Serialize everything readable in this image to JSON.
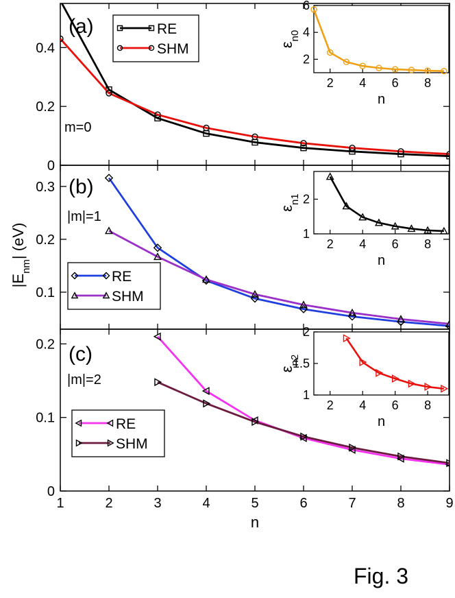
{
  "figure": {
    "caption": "Fig. 3",
    "shared_xlabel": "n",
    "shared_ylabel_main": "|E",
    "shared_ylabel_sub": "nm",
    "shared_ylabel_tail": "| (eV)",
    "x_ticks": [
      "1",
      "2",
      "3",
      "4",
      "5",
      "6",
      "7",
      "8",
      "9"
    ]
  },
  "chart_data": [
    {
      "type": "line",
      "id": "a",
      "panel_label": "(a)",
      "annotation": "m=0",
      "xlim": [
        1,
        9
      ],
      "ylim": [
        0,
        0.55
      ],
      "yticks": [
        0,
        0.2,
        0.4
      ],
      "ytick_labels": [
        "0",
        "0.2",
        "0.4"
      ],
      "legend_position": "top-left",
      "series": [
        {
          "name": "RE",
          "color": "#000000",
          "marker": "square",
          "x": [
            1,
            2,
            3,
            4,
            5,
            6,
            7,
            8,
            9
          ],
          "y": [
            0.56,
            0.257,
            0.16,
            0.108,
            0.078,
            0.059,
            0.047,
            0.038,
            0.031
          ]
        },
        {
          "name": "SHM",
          "color": "#e8120c",
          "marker": "circle",
          "x": [
            1,
            2,
            3,
            4,
            5,
            6,
            7,
            8,
            9
          ],
          "y": [
            0.43,
            0.245,
            0.172,
            0.127,
            0.097,
            0.075,
            0.059,
            0.047,
            0.038
          ]
        }
      ],
      "inset": {
        "ylabel_main": "ε",
        "ylabel_sub": "n0",
        "xlabel": "n",
        "xlim": [
          1,
          9.3
        ],
        "ylim": [
          1,
          6
        ],
        "xticks": [
          2,
          4,
          6,
          8
        ],
        "xtick_labels": [
          "2",
          "4",
          "6",
          "8"
        ],
        "yticks": [
          2,
          4,
          6
        ],
        "ytick_labels": [
          "2",
          "4",
          "6"
        ],
        "color": "#f0a014",
        "marker": "circle",
        "x": [
          1,
          2,
          3,
          4,
          5,
          6,
          7,
          8,
          9
        ],
        "y": [
          5.7,
          2.5,
          1.8,
          1.5,
          1.35,
          1.25,
          1.2,
          1.15,
          1.12
        ]
      }
    },
    {
      "type": "line",
      "id": "b",
      "panel_label": "(b)",
      "annotation": "|m|=1",
      "xlim": [
        1,
        9
      ],
      "ylim": [
        0.03,
        0.34
      ],
      "yticks": [
        0.1,
        0.2,
        0.3
      ],
      "ytick_labels": [
        "0.1",
        "0.2",
        "0.3"
      ],
      "legend_position": "bottom-left",
      "series": [
        {
          "name": "RE",
          "color": "#1f3fe0",
          "marker": "diamond",
          "x": [
            2,
            3,
            4,
            5,
            6,
            7,
            8,
            9
          ],
          "y": [
            0.316,
            0.184,
            0.122,
            0.088,
            0.068,
            0.054,
            0.044,
            0.036
          ]
        },
        {
          "name": "SHM",
          "color": "#9b2fc9",
          "marker": "triangle-up",
          "x": [
            2,
            3,
            4,
            5,
            6,
            7,
            8,
            9
          ],
          "y": [
            0.216,
            0.167,
            0.124,
            0.096,
            0.076,
            0.061,
            0.049,
            0.04
          ]
        }
      ],
      "inset": {
        "ylabel_main": "ε",
        "ylabel_sub": "n1",
        "xlabel": "n",
        "xlim": [
          1,
          9.3
        ],
        "ylim": [
          1,
          2.8
        ],
        "xticks": [
          2,
          4,
          6,
          8
        ],
        "xtick_labels": [
          "2",
          "4",
          "6",
          "8"
        ],
        "yticks": [
          1,
          2
        ],
        "ytick_labels": [
          "1",
          "2"
        ],
        "color": "#000000",
        "marker": "triangle-up",
        "x": [
          2,
          3,
          4,
          5,
          6,
          7,
          8,
          9
        ],
        "y": [
          2.65,
          1.8,
          1.48,
          1.32,
          1.22,
          1.15,
          1.1,
          1.08
        ]
      }
    },
    {
      "type": "line",
      "id": "c",
      "panel_label": "(c)",
      "annotation": "|m|=2",
      "xlim": [
        1,
        9
      ],
      "ylim": [
        0,
        0.22
      ],
      "yticks": [
        0,
        0.1,
        0.2
      ],
      "ytick_labels": [
        "0",
        "0.1",
        "0.2"
      ],
      "legend_position": "bottom-left",
      "series": [
        {
          "name": "RE",
          "color": "#f532f0",
          "marker": "triangle-left",
          "x": [
            3,
            4,
            5,
            6,
            7,
            8,
            9
          ],
          "y": [
            0.21,
            0.136,
            0.096,
            0.072,
            0.056,
            0.044,
            0.036
          ]
        },
        {
          "name": "SHM",
          "color": "#6d1a40",
          "marker": "triangle-right",
          "x": [
            3,
            4,
            5,
            6,
            7,
            8,
            9
          ],
          "y": [
            0.148,
            0.119,
            0.094,
            0.074,
            0.059,
            0.047,
            0.038
          ]
        }
      ],
      "inset": {
        "ylabel_main": "ε",
        "ylabel_sub": "n2",
        "xlabel": "n",
        "xlim": [
          1,
          9.3
        ],
        "ylim": [
          1,
          2
        ],
        "xticks": [
          2,
          4,
          6,
          8
        ],
        "xtick_labels": [
          "2",
          "4",
          "6",
          "8"
        ],
        "yticks": [
          1,
          1.5,
          2
        ],
        "ytick_labels": [
          "1",
          "1.5",
          "2"
        ],
        "color": "#e8120c",
        "marker": "triangle-right",
        "x": [
          3,
          4,
          5,
          6,
          7,
          8,
          9
        ],
        "y": [
          1.9,
          1.52,
          1.35,
          1.26,
          1.18,
          1.13,
          1.1
        ]
      }
    }
  ]
}
